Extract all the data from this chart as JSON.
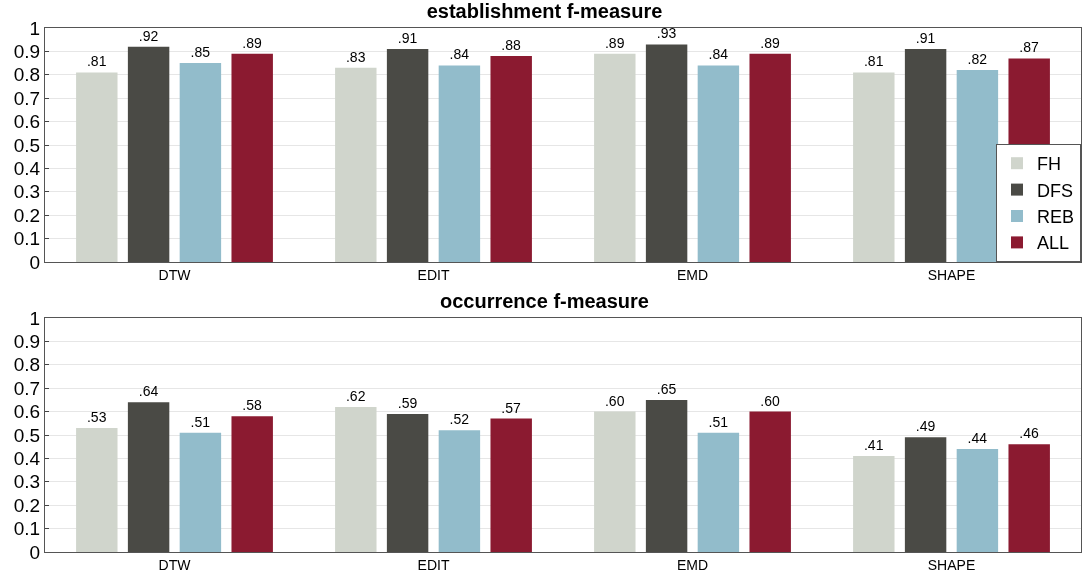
{
  "chart_data": [
    {
      "type": "bar",
      "title": "establishment f-measure",
      "categories": [
        "DTW",
        "EDIT",
        "EMD",
        "SHAPE"
      ],
      "ylim": [
        0,
        1
      ],
      "yticks": [
        0,
        0.1,
        0.2,
        0.3,
        0.4,
        0.5,
        0.6,
        0.7,
        0.8,
        0.9,
        1
      ],
      "grid": "y",
      "legend": "bottom right",
      "series": [
        {
          "name": "FH",
          "color": "#d0d5cc",
          "values": [
            0.81,
            0.83,
            0.89,
            0.81
          ],
          "value_labels": [
            ".81",
            ".83",
            ".89",
            ".81"
          ]
        },
        {
          "name": "DFS",
          "color": "#4a4a45",
          "values": [
            0.92,
            0.91,
            0.93,
            0.91
          ],
          "value_labels": [
            ".92",
            ".91",
            ".93",
            ".91"
          ]
        },
        {
          "name": "REB",
          "color": "#92bccb",
          "values": [
            0.85,
            0.84,
            0.84,
            0.82
          ],
          "value_labels": [
            ".85",
            ".84",
            ".84",
            ".82"
          ]
        },
        {
          "name": "ALL",
          "color": "#8b1a30",
          "values": [
            0.89,
            0.88,
            0.89,
            0.87
          ],
          "value_labels": [
            ".89",
            ".88",
            ".89",
            ".87"
          ]
        }
      ]
    },
    {
      "type": "bar",
      "title": "occurrence f-measure",
      "categories": [
        "DTW",
        "EDIT",
        "EMD",
        "SHAPE"
      ],
      "ylim": [
        0,
        1
      ],
      "yticks": [
        0,
        0.1,
        0.2,
        0.3,
        0.4,
        0.5,
        0.6,
        0.7,
        0.8,
        0.9,
        1
      ],
      "grid": "y",
      "series": [
        {
          "color": "#d0d5cc",
          "values": [
            0.53,
            0.62,
            0.6,
            0.41
          ],
          "value_labels": [
            ".53",
            ".62",
            ".60",
            ".41"
          ]
        },
        {
          "color": "#4a4a45",
          "values": [
            0.64,
            0.59,
            0.65,
            0.49
          ],
          "value_labels": [
            ".64",
            ".59",
            ".65",
            ".49"
          ]
        },
        {
          "color": "#92bccb",
          "values": [
            0.51,
            0.52,
            0.51,
            0.44
          ],
          "value_labels": [
            ".51",
            ".52",
            ".51",
            ".44"
          ]
        },
        {
          "color": "#8b1a30",
          "values": [
            0.58,
            0.57,
            0.6,
            0.46
          ],
          "value_labels": [
            ".58",
            ".57",
            ".60",
            ".46"
          ]
        }
      ]
    }
  ]
}
